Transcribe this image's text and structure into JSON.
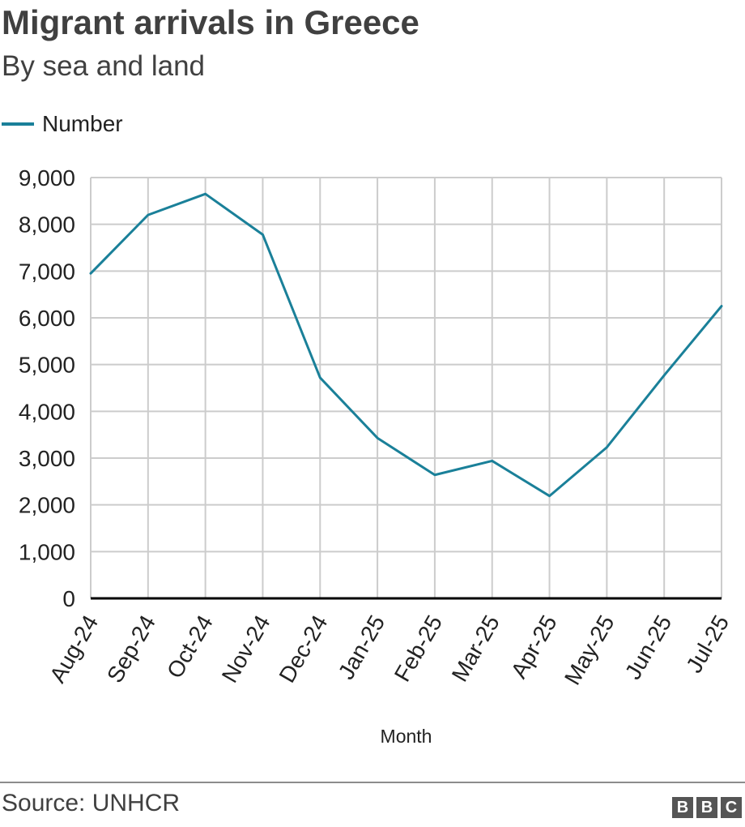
{
  "header": {
    "title": "Migrant arrivals in Greece",
    "subtitle": "By sea and land"
  },
  "footer": {
    "source": "Source: UNHCR",
    "logo_letters": [
      "B",
      "B",
      "C"
    ]
  },
  "colors": {
    "series_line": "#1a8099",
    "grid": "#cccccc",
    "axis": "#000000",
    "text": "#222222"
  },
  "chart_data": {
    "type": "line",
    "title": "Migrant arrivals in Greece",
    "subtitle": "By sea and land",
    "xlabel": "Month",
    "ylabel": "",
    "categories": [
      "Aug-24",
      "Sep-24",
      "Oct-24",
      "Nov-24",
      "Dec-24",
      "Jan-25",
      "Feb-25",
      "Mar-25",
      "Apr-25",
      "May-25",
      "Jun-25",
      "Jul-25"
    ],
    "series": [
      {
        "name": "Number",
        "values": [
          6950,
          8200,
          8650,
          7780,
          4720,
          3430,
          2640,
          2940,
          2190,
          3230,
          4770,
          6250
        ]
      }
    ],
    "ylim": [
      0,
      9000
    ],
    "yticks": [
      0,
      1000,
      2000,
      3000,
      4000,
      5000,
      6000,
      7000,
      8000,
      9000
    ],
    "ytick_labels": [
      "0",
      "1,000",
      "2,000",
      "3,000",
      "4,000",
      "5,000",
      "6,000",
      "7,000",
      "8,000",
      "9,000"
    ],
    "grid": true,
    "legend": "top-left"
  }
}
